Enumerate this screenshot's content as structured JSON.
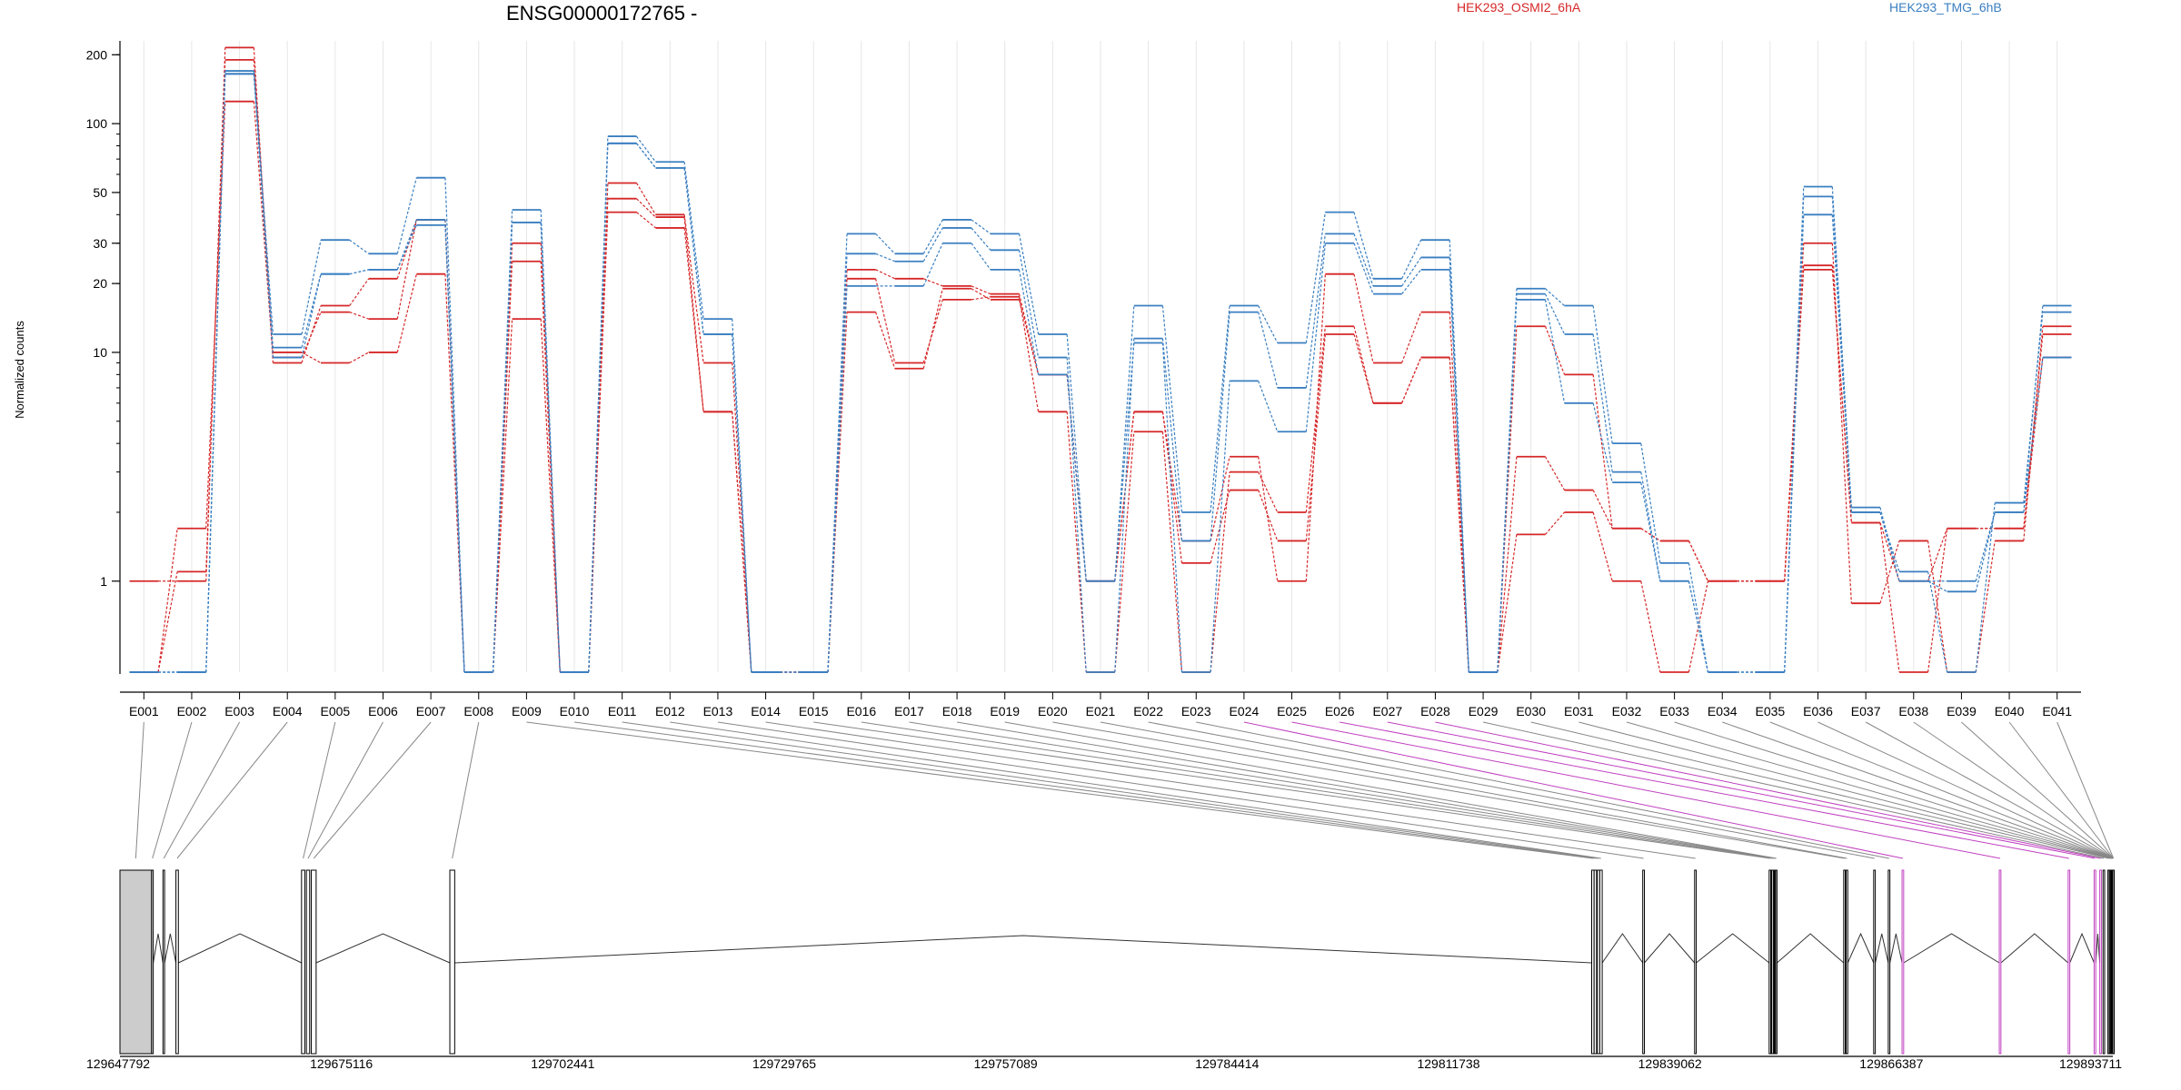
{
  "header": {
    "title": "ENSG00000172765 -",
    "legend": [
      {
        "label": "HEK293_OSMI2_6hA",
        "color": "#d62728"
      },
      {
        "label": "HEK293_TMG_6hB",
        "color": "#3a7fc1"
      }
    ]
  },
  "chart_data": {
    "type": "line",
    "y_scale": "log",
    "ylabel": "Normalized counts",
    "yticks": [
      "1",
      "10",
      "20",
      "30",
      "50",
      "100",
      "200"
    ],
    "ylim": [
      0.4,
      230
    ],
    "zero_level": 0.4,
    "categories": [
      "E001",
      "E002",
      "E003",
      "E004",
      "E005",
      "E006",
      "E007",
      "E008",
      "E009",
      "E010",
      "E011",
      "E012",
      "E013",
      "E014",
      "E015",
      "E016",
      "E017",
      "E018",
      "E019",
      "E020",
      "E021",
      "E022",
      "E023",
      "E024",
      "E025",
      "E026",
      "E027",
      "E028",
      "E029",
      "E030",
      "E031",
      "E032",
      "E033",
      "E034",
      "E035",
      "E036",
      "E037",
      "E038",
      "E039",
      "E040",
      "E041"
    ],
    "series": [
      {
        "group": "HEK293_OSMI2_6hA",
        "color": "#d62728",
        "values": [
          1,
          1,
          215,
          9,
          16,
          21,
          38,
          0,
          30,
          0,
          55,
          40,
          9,
          0,
          0,
          23,
          21,
          19.5,
          18,
          8,
          1,
          5.5,
          1.5,
          3.5,
          1,
          22,
          9,
          15,
          0,
          13,
          8,
          1.7,
          1.5,
          1,
          1,
          30,
          0.8,
          1.5,
          0,
          1.5,
          13
        ]
      },
      {
        "group": "HEK293_OSMI2_6hA",
        "color": "#d62728",
        "values": [
          0,
          1.1,
          190,
          10,
          9,
          10,
          22,
          0,
          25,
          0,
          47,
          39,
          5.5,
          0,
          0,
          21,
          9,
          17,
          17.5,
          5.5,
          0,
          4.5,
          0,
          3,
          2,
          13,
          6,
          9.5,
          0,
          3.5,
          2.5,
          1.7,
          1.5,
          1,
          1,
          24,
          1.8,
          0,
          1.7,
          1.7,
          12
        ]
      },
      {
        "group": "HEK293_OSMI2_6hA",
        "color": "#d62728",
        "values": [
          0,
          1.7,
          125,
          9.5,
          15,
          14,
          38,
          0,
          14,
          0,
          41,
          35,
          5.5,
          0,
          0,
          15,
          8.5,
          19,
          17,
          8,
          1,
          5.5,
          1.2,
          2.5,
          1.5,
          12,
          6,
          9.5,
          0,
          1.6,
          2,
          1,
          0,
          1,
          1,
          23,
          1.8,
          1,
          1.7,
          1.7,
          9.5
        ]
      },
      {
        "group": "HEK293_TMG_6hB",
        "color": "#3a7fc1",
        "values": [
          0,
          0,
          170,
          12,
          31,
          27,
          58,
          0,
          42,
          0,
          88,
          68,
          14,
          0,
          0,
          33,
          27,
          38,
          33,
          12,
          1,
          16,
          2,
          16,
          11,
          41,
          21,
          31,
          0,
          19,
          16,
          4,
          1.2,
          0,
          0,
          53,
          2.1,
          1,
          0.9,
          2,
          16
        ]
      },
      {
        "group": "HEK293_TMG_6hB",
        "color": "#3a7fc1",
        "values": [
          0,
          0,
          165,
          9.5,
          22,
          23,
          36,
          0,
          37,
          0,
          82,
          64,
          12,
          0,
          0,
          27,
          25,
          35,
          28,
          9.5,
          0,
          11.5,
          1.5,
          15,
          7,
          33,
          19.5,
          26,
          0,
          18,
          12,
          3,
          1,
          0,
          0,
          40,
          2,
          1.1,
          0,
          2.2,
          15
        ]
      },
      {
        "group": "HEK293_TMG_6hB",
        "color": "#3a7fc1",
        "values": [
          0,
          0,
          165,
          10.5,
          22,
          23,
          38,
          0,
          37,
          0,
          82,
          64,
          12,
          0,
          0,
          19.5,
          19.5,
          30,
          23,
          8,
          1,
          11,
          0,
          7.5,
          4.5,
          30,
          18,
          23,
          0,
          17,
          6,
          2.7,
          1,
          0,
          0,
          48,
          2,
          1,
          1,
          2,
          9.5
        ]
      }
    ]
  },
  "gene_model": {
    "coordinate_labels": [
      "129647792",
      "129675116",
      "129702441",
      "129729765",
      "129757089",
      "129784414",
      "129811738",
      "129839062",
      "129866387",
      "129893711"
    ],
    "axis_range": [
      129647792,
      129893711
    ],
    "highlight_color": "#c040c0",
    "highlight_exons": [
      "E024",
      "E025",
      "E026",
      "E027",
      "E028"
    ],
    "exon_starts": [
      129647792,
      129651700,
      129653100,
      129654700,
      129670200,
      129670800,
      129671400,
      129688500,
      129829400,
      129829700,
      129830100,
      129830400,
      129835700,
      129842100,
      129851300,
      129851600,
      129851900,
      129852000,
      129852100,
      129860500,
      129860800,
      129864200,
      129866000,
      129867700,
      129879700,
      129888200,
      129891400,
      129892100,
      129892500,
      129893100,
      129893300,
      129893400,
      129893500,
      129893550,
      129893600,
      129893620,
      129893640,
      129893660,
      129893680,
      129893690,
      129893700
    ],
    "exon_widths": [
      3900,
      200,
      200,
      300,
      400,
      400,
      600,
      600,
      300,
      300,
      300,
      300,
      200,
      200,
      200,
      200,
      100,
      80,
      80,
      200,
      200,
      200,
      200,
      200,
      200,
      200,
      200,
      200,
      200,
      150,
      100,
      50,
      40,
      40,
      20,
      15,
      15,
      15,
      10,
      10,
      11
    ],
    "introns_order": "sequential"
  }
}
